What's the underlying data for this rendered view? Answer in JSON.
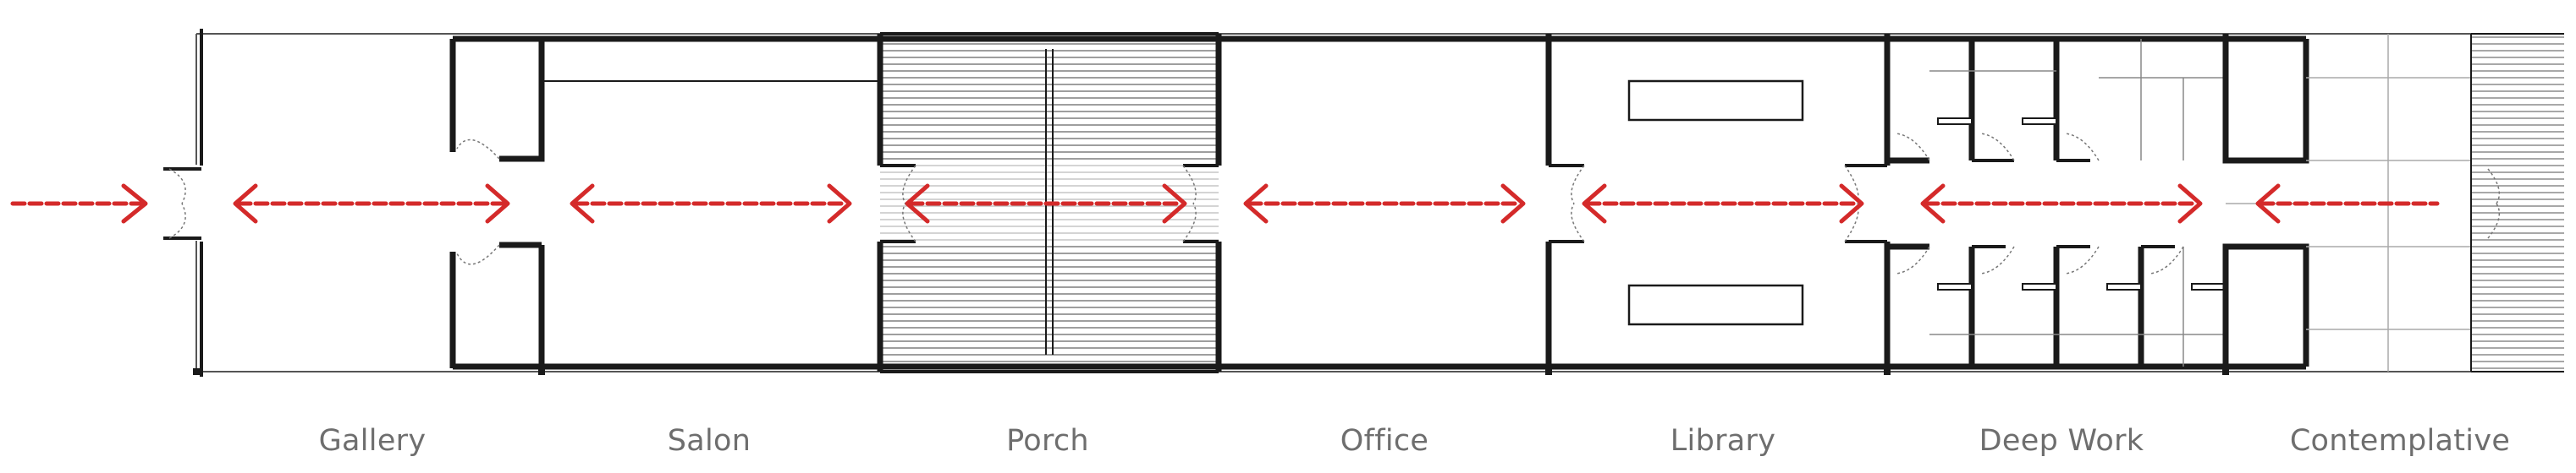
{
  "diagram": {
    "colors": {
      "wall": "#1a1a1a",
      "thin_line": "#555555",
      "hatch": "#6a6a6a",
      "arrow": "#d42a2a",
      "label": "#6e6e6e"
    },
    "rooms": [
      {
        "id": "gallery",
        "label": "Gallery"
      },
      {
        "id": "salon",
        "label": "Salon"
      },
      {
        "id": "porch",
        "label": "Porch"
      },
      {
        "id": "office",
        "label": "Office"
      },
      {
        "id": "library",
        "label": "Library"
      },
      {
        "id": "deep-work",
        "label": "Deep Work"
      },
      {
        "id": "contemplative",
        "label": "Contemplative"
      }
    ]
  }
}
